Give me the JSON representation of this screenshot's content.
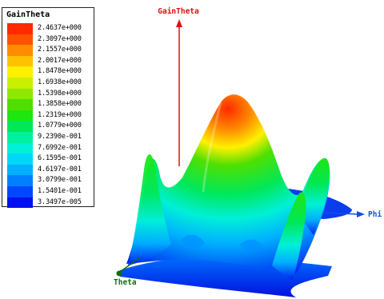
{
  "legend": {
    "title": "GainTheta",
    "items": [
      {
        "label": "2.4637e+000",
        "color": "#ff2a00"
      },
      {
        "label": "2.3097e+000",
        "color": "#ff5200"
      },
      {
        "label": "2.1557e+000",
        "color": "#ff8c00"
      },
      {
        "label": "2.0017e+000",
        "color": "#ffc200"
      },
      {
        "label": "1.8478e+000",
        "color": "#fff000"
      },
      {
        "label": "1.6938e+000",
        "color": "#c8f000"
      },
      {
        "label": "1.5398e+000",
        "color": "#8ee800"
      },
      {
        "label": "1.3858e+000",
        "color": "#4fe000"
      },
      {
        "label": "1.2319e+000",
        "color": "#1ee610"
      },
      {
        "label": "1.0779e+000",
        "color": "#00e85a"
      },
      {
        "label": "9.2390e-001",
        "color": "#00f0a0"
      },
      {
        "label": "7.6992e-001",
        "color": "#00f0d8"
      },
      {
        "label": "6.1595e-001",
        "color": "#00d8f8"
      },
      {
        "label": "4.6197e-001",
        "color": "#00b0ff"
      },
      {
        "label": "3.0799e-001",
        "color": "#0080ff"
      },
      {
        "label": "1.5401e-001",
        "color": "#0048ff"
      },
      {
        "label": "3.3497e-005",
        "color": "#0010f0"
      }
    ]
  },
  "axes": {
    "z_label": "GainTheta",
    "x_label": "Phi",
    "y_label": "Theta",
    "z_color": "#e01010",
    "x_color": "#1050e0",
    "y_color": "#107010"
  },
  "chart_data": {
    "type": "surface",
    "title": "GainTheta",
    "xlabel": "Phi",
    "ylabel": "Theta",
    "zlabel": "GainTheta",
    "zlim": [
      3.3497e-05,
      2.4637
    ],
    "colorbar_ticks": [
      2.4637,
      2.3097,
      2.1557,
      2.0017,
      1.8478,
      1.6938,
      1.5398,
      1.3858,
      1.2319,
      1.0779,
      0.9239,
      0.76992,
      0.61595,
      0.46197,
      0.30799,
      0.15401,
      3.3497e-05
    ],
    "peaks": [
      {
        "description": "central main lobe",
        "value": 2.46
      },
      {
        "description": "left side lobe",
        "value": 1.3
      },
      {
        "description": "right side lobe",
        "value": 1.2
      },
      {
        "description": "front-right lobe",
        "value": 1.1
      }
    ]
  }
}
